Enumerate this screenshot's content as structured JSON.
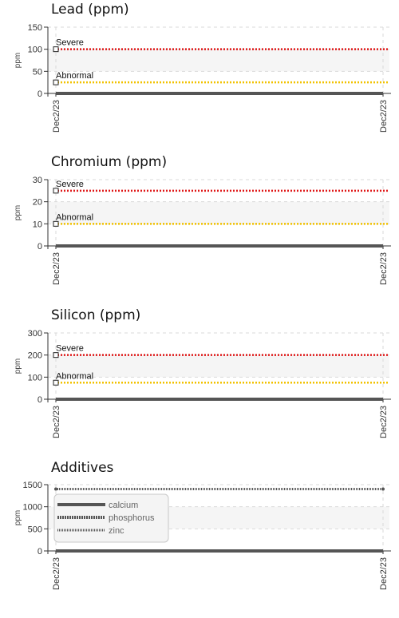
{
  "chart_data": [
    {
      "type": "line",
      "title": "Lead (ppm)",
      "ylabel": "ppm",
      "ylim": [
        0,
        150
      ],
      "yticks": [
        0,
        50,
        100,
        150
      ],
      "x": [
        "Dec2/23",
        "Dec2/23"
      ],
      "series": [
        {
          "values": [
            0,
            0
          ]
        }
      ],
      "limits": [
        {
          "label": "Abnormal",
          "value": 25,
          "color": "#f2c200"
        },
        {
          "label": "Severe",
          "value": 100,
          "color": "#e01818"
        }
      ]
    },
    {
      "type": "line",
      "title": "Chromium (ppm)",
      "ylabel": "ppm",
      "ylim": [
        0,
        30
      ],
      "yticks": [
        0,
        10,
        20,
        30
      ],
      "x": [
        "Dec2/23",
        "Dec2/23"
      ],
      "series": [
        {
          "values": [
            0,
            0
          ]
        }
      ],
      "limits": [
        {
          "label": "Abnormal",
          "value": 10,
          "color": "#f2c200"
        },
        {
          "label": "Severe",
          "value": 25,
          "color": "#e01818"
        }
      ]
    },
    {
      "type": "line",
      "title": "Silicon (ppm)",
      "ylabel": "ppm",
      "ylim": [
        0,
        300
      ],
      "yticks": [
        0,
        100,
        200,
        300
      ],
      "x": [
        "Dec2/23",
        "Dec2/23"
      ],
      "series": [
        {
          "values": [
            0,
            0
          ]
        }
      ],
      "limits": [
        {
          "label": "Abnormal",
          "value": 75,
          "color": "#f2c200"
        },
        {
          "label": "Severe",
          "value": 200,
          "color": "#e01818"
        }
      ]
    },
    {
      "type": "line",
      "title": "Additives",
      "ylabel": "ppm",
      "ylim": [
        0,
        1500
      ],
      "yticks": [
        0,
        500,
        1000,
        1500
      ],
      "x": [
        "Dec2/23",
        "Dec2/23"
      ],
      "series": [
        {
          "name": "calcium",
          "values": [
            0,
            0
          ],
          "style": "solid"
        },
        {
          "name": "phosphorus",
          "values": [
            0,
            0
          ],
          "style": "dotted"
        },
        {
          "name": "zinc",
          "values": [
            1400,
            1400
          ],
          "style": "dashed"
        }
      ],
      "legend": "top-left"
    }
  ],
  "colors": {
    "series": "#555555",
    "abnormal": "#f2c200",
    "severe": "#e01818",
    "band": "#f5f5f5",
    "grid": "#d9d9d9"
  }
}
